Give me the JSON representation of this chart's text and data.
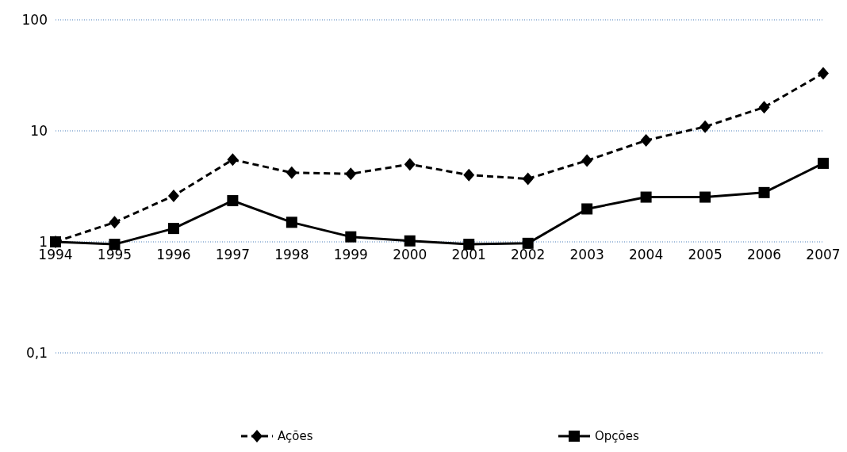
{
  "chart_data": {
    "type": "line",
    "categories": [
      "1994",
      "1995",
      "1996",
      "1997",
      "1998",
      "1999",
      "2000",
      "2001",
      "2002",
      "2003",
      "2004",
      "2005",
      "2006",
      "2007"
    ],
    "series": [
      {
        "name": "Ações",
        "color": "#000000",
        "line_style": "dashed",
        "marker": "diamond",
        "values": [
          1,
          1.5,
          2.6,
          5.5,
          4.2,
          4.1,
          5.0,
          4.0,
          3.7,
          5.4,
          8.2,
          10.9,
          16.3,
          33
        ]
      },
      {
        "name": "Opções",
        "color": "#000000",
        "line_style": "solid",
        "marker": "square",
        "values": [
          1,
          0.95,
          1.32,
          2.35,
          1.5,
          1.11,
          1.02,
          0.95,
          0.97,
          1.98,
          2.53,
          2.53,
          2.78,
          5.1
        ]
      }
    ],
    "log": true,
    "ylim": [
      0.1,
      100
    ],
    "yticks": [
      {
        "value": 0.1,
        "label": "0,1"
      },
      1,
      10,
      100
    ],
    "grid": "y",
    "legend": "bottom"
  }
}
